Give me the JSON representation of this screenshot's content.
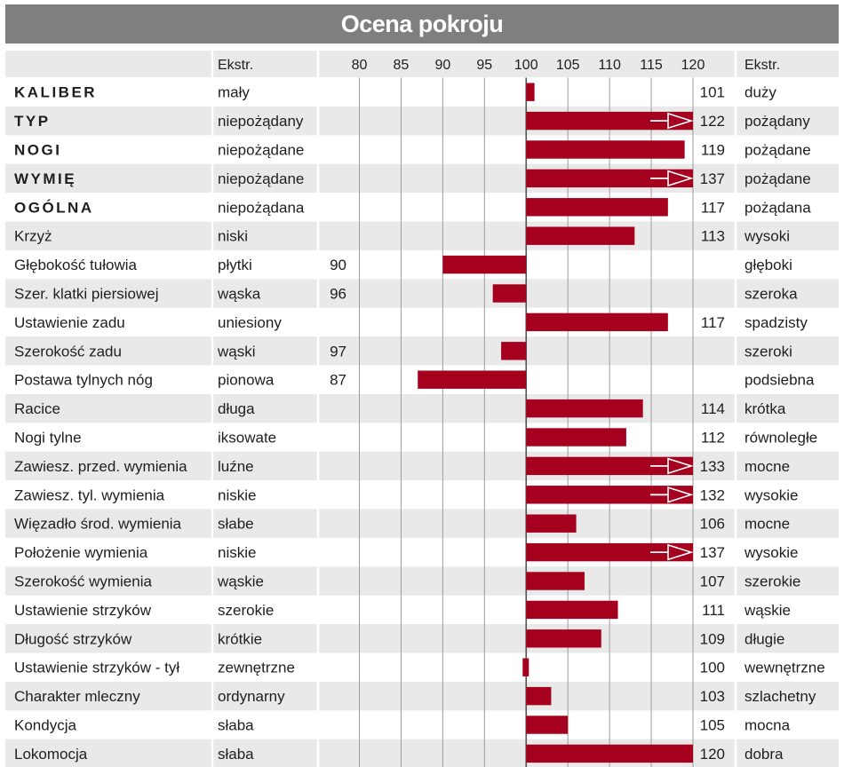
{
  "title": "Ocena pokroju",
  "header": {
    "left_extreme": "Ekstr.",
    "right_extreme": "Ekstr."
  },
  "colors": {
    "bar": "#a6001f",
    "row_shade": "#e9e9e9",
    "title_bg": "#7f7f7f",
    "grid": "#9c9c9c"
  },
  "chart_data": {
    "type": "bar",
    "orientation": "horizontal",
    "baseline": 100,
    "xlim": [
      80,
      120
    ],
    "ticks": [
      80,
      85,
      90,
      95,
      100,
      105,
      110,
      115,
      120
    ],
    "rows": [
      {
        "trait": "KALIBER",
        "bold": true,
        "low": "mały",
        "high": "duży",
        "value": 101
      },
      {
        "trait": "TYP",
        "bold": true,
        "low": "niepożądany",
        "high": "pożądany",
        "value": 122
      },
      {
        "trait": "NOGI",
        "bold": true,
        "low": "niepożądane",
        "high": "pożądane",
        "value": 119
      },
      {
        "trait": "WYMIĘ",
        "bold": true,
        "low": "niepożądane",
        "high": "pożądane",
        "value": 137
      },
      {
        "trait": "OGÓLNA",
        "bold": true,
        "low": "niepożądana",
        "high": "pożądana",
        "value": 117
      },
      {
        "trait": "Krzyż",
        "bold": false,
        "low": "niski",
        "high": "wysoki",
        "value": 113
      },
      {
        "trait": "Głębokość tułowia",
        "bold": false,
        "low": "płytki",
        "high": "głęboki",
        "value": 90
      },
      {
        "trait": "Szer. klatki piersiowej",
        "bold": false,
        "low": "wąska",
        "high": "szeroka",
        "value": 96
      },
      {
        "trait": "Ustawienie zadu",
        "bold": false,
        "low": "uniesiony",
        "high": "spadzisty",
        "value": 117
      },
      {
        "trait": "Szerokość zadu",
        "bold": false,
        "low": "wąski",
        "high": "szeroki",
        "value": 97
      },
      {
        "trait": "Postawa tylnych nóg",
        "bold": false,
        "low": "pionowa",
        "high": "podsiebna",
        "value": 87
      },
      {
        "trait": "Racice",
        "bold": false,
        "low": "długa",
        "high": "krótka",
        "value": 114
      },
      {
        "trait": "Nogi tylne",
        "bold": false,
        "low": "iksowate",
        "high": "równoległe",
        "value": 112
      },
      {
        "trait": "Zawiesz. przed. wymienia",
        "bold": false,
        "low": "luźne",
        "high": "mocne",
        "value": 133
      },
      {
        "trait": "Zawiesz. tyl. wymienia",
        "bold": false,
        "low": "niskie",
        "high": "wysokie",
        "value": 132
      },
      {
        "trait": "Więzadło środ. wymienia",
        "bold": false,
        "low": "słabe",
        "high": "mocne",
        "value": 106
      },
      {
        "trait": "Położenie wymienia",
        "bold": false,
        "low": "niskie",
        "high": "wysokie",
        "value": 137
      },
      {
        "trait": "Szerokość wymienia",
        "bold": false,
        "low": "wąskie",
        "high": "szerokie",
        "value": 107
      },
      {
        "trait": "Ustawienie strzyków",
        "bold": false,
        "low": "szerokie",
        "high": "wąskie",
        "value": 111
      },
      {
        "trait": "Długość strzyków",
        "bold": false,
        "low": "krótkie",
        "high": "długie",
        "value": 109
      },
      {
        "trait": "Ustawienie strzyków - tył",
        "bold": false,
        "low": "zewnętrzne",
        "high": "wewnętrzne",
        "value": 100
      },
      {
        "trait": "Charakter mleczny",
        "bold": false,
        "low": "ordynarny",
        "high": "szlachetny",
        "value": 103
      },
      {
        "trait": "Kondycja",
        "bold": false,
        "low": "słaba",
        "high": "mocna",
        "value": 105
      },
      {
        "trait": "Lokomocja",
        "bold": false,
        "low": "słaba",
        "high": "dobra",
        "value": 120
      }
    ]
  }
}
